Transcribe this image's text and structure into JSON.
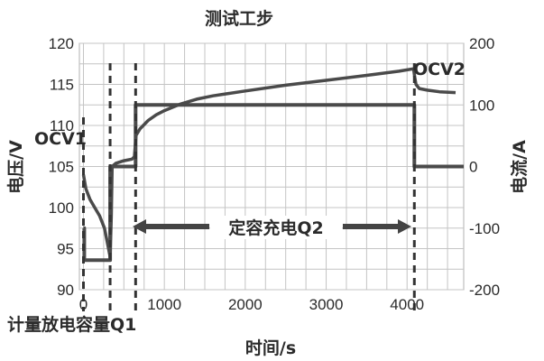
{
  "chart_data": {
    "type": "line",
    "title": "测试工步",
    "xlabel": "时间/s",
    "ylabel_left": "电压/V",
    "ylabel_right": "电流/A",
    "xlim": [
      -50,
      4700
    ],
    "ylim_left": [
      90,
      120
    ],
    "ylim_right": [
      -200,
      200
    ],
    "x_ticks": [
      0,
      1000,
      2000,
      3000,
      4000
    ],
    "y_left_ticks": [
      90,
      95,
      100,
      105,
      110,
      115,
      120
    ],
    "y_right_ticks": [
      -200,
      -100,
      0,
      100,
      200
    ],
    "grid": true,
    "series": [
      {
        "axis": "left",
        "points": [
          [
            0,
            104
          ],
          [
            30,
            102.3
          ],
          [
            80,
            101
          ],
          [
            140,
            100
          ],
          [
            200,
            99
          ],
          [
            260,
            97.5
          ],
          [
            300,
            95.5
          ],
          [
            330,
            94
          ],
          [
            345,
            99
          ],
          [
            355,
            105
          ],
          [
            400,
            105.4
          ],
          [
            500,
            105.7
          ],
          [
            600,
            105.9
          ],
          [
            630,
            106.2
          ],
          [
            650,
            108.8
          ],
          [
            700,
            109.6
          ],
          [
            800,
            110.6
          ],
          [
            900,
            111.3
          ],
          [
            1000,
            111.8
          ],
          [
            1200,
            112.6
          ],
          [
            1400,
            113.2
          ],
          [
            1600,
            113.6
          ],
          [
            1800,
            113.9
          ],
          [
            2000,
            114.2
          ],
          [
            2500,
            114.9
          ],
          [
            3000,
            115.5
          ],
          [
            3500,
            116.1
          ],
          [
            3900,
            116.6
          ],
          [
            4080,
            116.9
          ],
          [
            4095,
            115.9
          ],
          [
            4110,
            115
          ],
          [
            4150,
            114.5
          ],
          [
            4250,
            114.3
          ],
          [
            4400,
            114.1
          ],
          [
            4600,
            114
          ]
        ]
      },
      {
        "axis": "right",
        "points": [
          [
            0,
            -100
          ],
          [
            10,
            -100
          ],
          [
            10,
            -152
          ],
          [
            330,
            -152
          ],
          [
            330,
            0
          ],
          [
            645,
            0
          ],
          [
            645,
            100
          ],
          [
            4090,
            100
          ],
          [
            4090,
            0
          ],
          [
            4700,
            0
          ]
        ]
      }
    ],
    "markers_x": [
      330,
      645,
      4090
    ],
    "annotations": [
      {
        "text": "OCV1"
      },
      {
        "text": "OCV2"
      },
      {
        "text": "定容充电Q2"
      },
      {
        "text": "计量放电容量Q1"
      }
    ]
  }
}
